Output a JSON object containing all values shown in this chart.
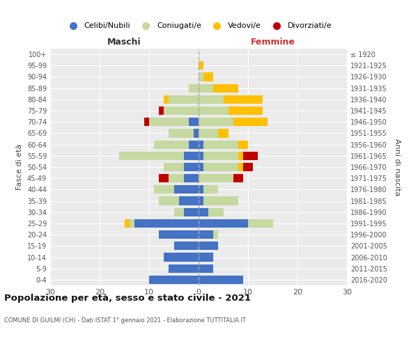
{
  "age_groups": [
    "100+",
    "95-99",
    "90-94",
    "85-89",
    "80-84",
    "75-79",
    "70-74",
    "65-69",
    "60-64",
    "55-59",
    "50-54",
    "45-49",
    "40-44",
    "35-39",
    "30-34",
    "25-29",
    "20-24",
    "15-19",
    "10-14",
    "5-9",
    "0-4"
  ],
  "birth_years": [
    "≤ 1920",
    "1921-1925",
    "1926-1930",
    "1931-1935",
    "1936-1940",
    "1941-1945",
    "1946-1950",
    "1951-1955",
    "1956-1960",
    "1961-1965",
    "1966-1970",
    "1971-1975",
    "1976-1980",
    "1981-1985",
    "1986-1990",
    "1991-1995",
    "1996-2000",
    "2001-2005",
    "2006-2010",
    "2011-2015",
    "2016-2020"
  ],
  "males": {
    "celibi": [
      0,
      0,
      0,
      0,
      0,
      0,
      2,
      1,
      2,
      3,
      3,
      3,
      5,
      4,
      3,
      13,
      8,
      5,
      7,
      6,
      10
    ],
    "coniugati": [
      0,
      0,
      0,
      2,
      6,
      7,
      8,
      5,
      7,
      13,
      4,
      3,
      4,
      4,
      2,
      1,
      0,
      0,
      0,
      0,
      0
    ],
    "vedovi": [
      0,
      0,
      0,
      0,
      1,
      0,
      0,
      0,
      0,
      0,
      0,
      0,
      0,
      0,
      0,
      1,
      0,
      0,
      0,
      0,
      0
    ],
    "divorziati": [
      0,
      0,
      0,
      0,
      0,
      1,
      1,
      0,
      0,
      0,
      0,
      2,
      0,
      0,
      0,
      0,
      0,
      0,
      0,
      0,
      0
    ]
  },
  "females": {
    "nubili": [
      0,
      0,
      0,
      0,
      0,
      0,
      0,
      0,
      1,
      1,
      1,
      0,
      1,
      1,
      2,
      10,
      3,
      4,
      3,
      3,
      9
    ],
    "coniugate": [
      0,
      0,
      1,
      3,
      5,
      6,
      7,
      4,
      7,
      7,
      7,
      7,
      3,
      7,
      3,
      5,
      1,
      0,
      0,
      0,
      0
    ],
    "vedove": [
      0,
      1,
      2,
      5,
      8,
      7,
      7,
      2,
      2,
      1,
      1,
      0,
      0,
      0,
      0,
      0,
      0,
      0,
      0,
      0,
      0
    ],
    "divorziate": [
      0,
      0,
      0,
      0,
      0,
      0,
      0,
      0,
      0,
      3,
      2,
      2,
      0,
      0,
      0,
      0,
      0,
      0,
      0,
      0,
      0
    ]
  },
  "colors": {
    "celibi": "#4472c4",
    "coniugati": "#c5d9a0",
    "vedovi": "#ffc000",
    "divorziati": "#c00000"
  },
  "title": "Popolazione per età, sesso e stato civile - 2021",
  "subtitle": "COMUNE DI GUILMI (CH) - Dati ISTAT 1° gennaio 2021 - Elaborazione TUTTITALIA.IT",
  "xlabel_left": "Maschi",
  "xlabel_right": "Femmine",
  "ylabel_left": "Fasce di età",
  "ylabel_right": "Anni di nascita",
  "xlim": 30,
  "bg_color": "#ffffff",
  "plot_bg_color": "#ebebeb",
  "grid_color": "#ffffff",
  "legend_labels": [
    "Celibi/Nubili",
    "Coniugati/e",
    "Vedovi/e",
    "Divorziati/e"
  ]
}
